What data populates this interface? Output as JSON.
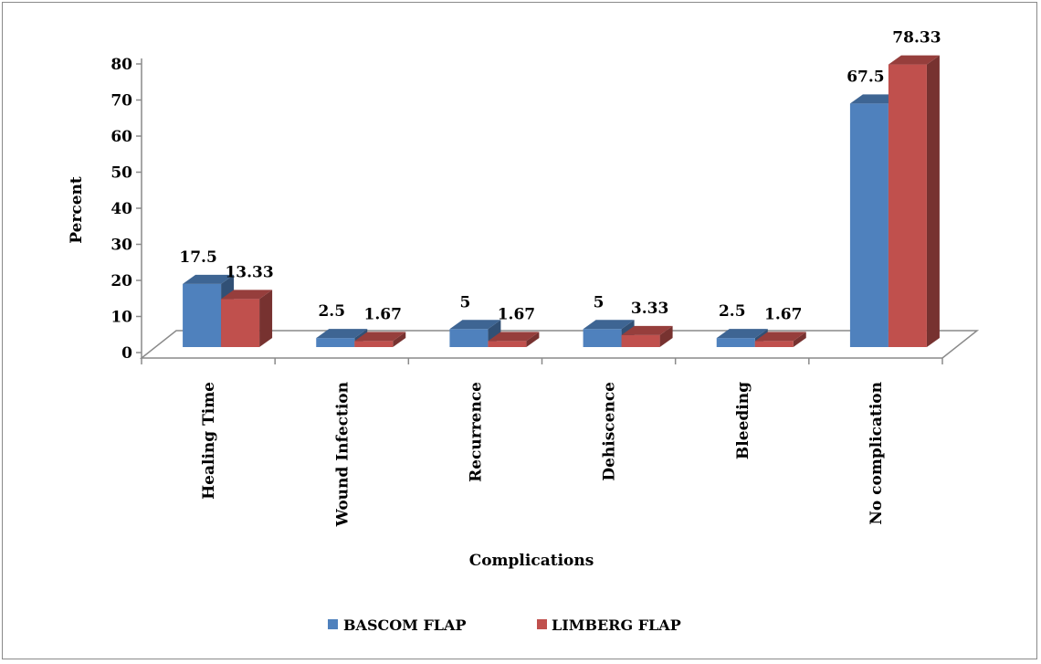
{
  "chart_data": {
    "type": "bar",
    "title": "",
    "xlabel": "Complications",
    "ylabel": "Percent",
    "ylim": [
      0,
      80
    ],
    "yticks": [
      0,
      10,
      20,
      30,
      40,
      50,
      60,
      70,
      80
    ],
    "categories": [
      "Healing Time",
      "Wound Infection",
      "Recurrence",
      "Dehiscence",
      "Bleeding",
      "No complication"
    ],
    "series": [
      {
        "name": "BASCOM FLAP",
        "values": [
          17.5,
          2.5,
          5,
          5,
          2.5,
          67.5
        ],
        "labels": [
          "17.5",
          "2.5",
          "5",
          "5",
          "2.5",
          "67.5"
        ],
        "color": "#4f81bd"
      },
      {
        "name": "LIMBERG FLAP",
        "values": [
          13.33,
          1.67,
          1.67,
          3.33,
          1.67,
          78.33
        ],
        "labels": [
          "13.33",
          "1.67",
          "1.67",
          "3.33",
          "1.67",
          "78.33"
        ],
        "color": "#c0504d"
      }
    ],
    "legend": "bottom",
    "grid": false,
    "style": "3d-column"
  }
}
